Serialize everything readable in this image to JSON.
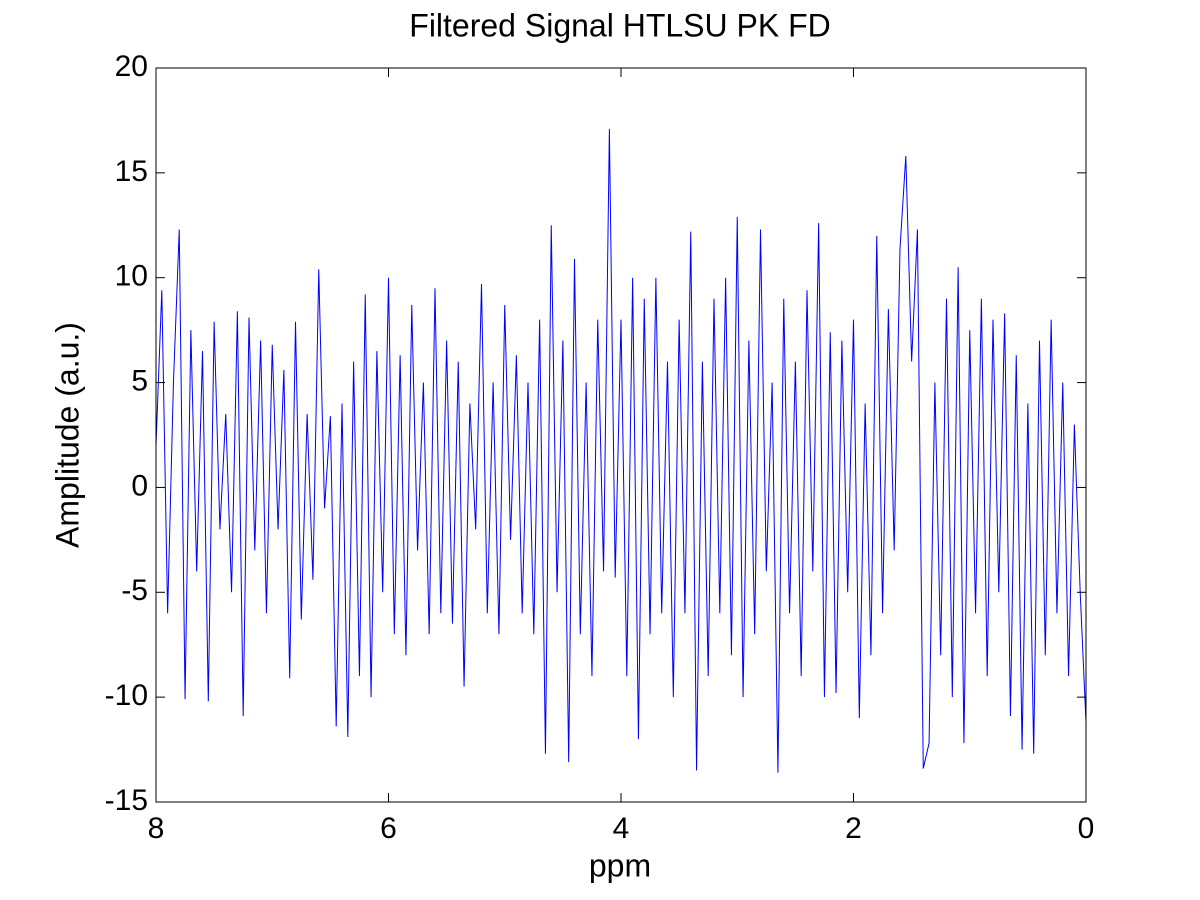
{
  "chart_data": {
    "type": "line",
    "title": "Filtered Signal HTLSU PK FD",
    "xlabel": "ppm",
    "ylabel": "Amplitude (a.u.)",
    "xlim": [
      8,
      0
    ],
    "xticks": [
      8,
      6,
      4,
      2,
      0
    ],
    "ylim": [
      -15,
      20
    ],
    "yticks": [
      -15,
      -10,
      -5,
      0,
      5,
      10,
      15,
      20
    ],
    "grid": false,
    "box": true,
    "x": [
      8,
      7.95,
      7.9,
      7.85,
      7.8,
      7.75,
      7.7,
      7.65,
      7.6,
      7.55,
      7.5,
      7.45,
      7.4,
      7.35,
      7.3,
      7.25,
      7.2,
      7.15,
      7.1,
      7.05,
      7.0,
      6.95,
      6.9,
      6.85,
      6.8,
      6.75,
      6.7,
      6.65,
      6.6,
      6.55,
      6.5,
      6.45,
      6.4,
      6.35,
      6.3,
      6.25,
      6.2,
      6.15,
      6.1,
      6.05,
      6.0,
      5.95,
      5.9,
      5.85,
      5.8,
      5.75,
      5.7,
      5.65,
      5.6,
      5.55,
      5.5,
      5.45,
      5.4,
      5.35,
      5.3,
      5.25,
      5.2,
      5.15,
      5.1,
      5.05,
      5.0,
      4.95,
      4.9,
      4.85,
      4.8,
      4.75,
      4.7,
      4.65,
      4.6,
      4.55,
      4.5,
      4.45,
      4.4,
      4.35,
      4.3,
      4.25,
      4.2,
      4.15,
      4.1,
      4.05,
      4.0,
      3.95,
      3.9,
      3.85,
      3.8,
      3.75,
      3.7,
      3.65,
      3.6,
      3.55,
      3.5,
      3.45,
      3.4,
      3.35,
      3.3,
      3.25,
      3.2,
      3.15,
      3.1,
      3.05,
      3.0,
      2.95,
      2.9,
      2.85,
      2.8,
      2.75,
      2.7,
      2.65,
      2.6,
      2.55,
      2.5,
      2.45,
      2.4,
      2.35,
      2.3,
      2.25,
      2.2,
      2.15,
      2.1,
      2.05,
      2.0,
      1.95,
      1.9,
      1.85,
      1.8,
      1.75,
      1.7,
      1.65,
      1.6,
      1.55,
      1.5,
      1.45,
      1.4,
      1.35,
      1.3,
      1.25,
      1.2,
      1.15,
      1.1,
      1.05,
      1.0,
      0.95,
      0.9,
      0.85,
      0.8,
      0.75,
      0.7,
      0.65,
      0.6,
      0.55,
      0.5,
      0.45,
      0.4,
      0.35,
      0.3,
      0.25,
      0.2,
      0.15,
      0.1,
      0.05,
      0
    ],
    "series": [
      {
        "color": "#0000ff",
        "values": [
          2,
          9.4,
          -6,
          5,
          12.3,
          -10.1,
          7.5,
          -4,
          6.5,
          -10.2,
          7.9,
          -2,
          3.5,
          -5,
          8.4,
          -10.9,
          8.1,
          -3,
          7,
          -6,
          6.8,
          -2,
          5.6,
          -9.1,
          7.9,
          -6.3,
          3.5,
          -4.4,
          10.4,
          -1,
          3.4,
          -11.4,
          4,
          -11.9,
          6,
          -9,
          9.2,
          -10,
          6.5,
          -5,
          10,
          -7,
          6.3,
          -8,
          8.7,
          -3,
          5,
          -7,
          9.5,
          -6,
          7,
          -6.5,
          6,
          -9.5,
          4,
          -2,
          9.7,
          -6,
          5,
          -7,
          8.7,
          -2.5,
          6.3,
          -6,
          5,
          -7,
          8,
          -12.7,
          12.5,
          -5,
          7,
          -13.1,
          10.9,
          -7,
          5,
          -9,
          8,
          -4,
          17.1,
          -4.3,
          8,
          -9,
          10,
          -12,
          9,
          -7,
          10,
          -6,
          6,
          -10,
          8,
          -6,
          12.2,
          -13.5,
          6,
          -9,
          9,
          -6,
          10,
          -8,
          12.9,
          -10,
          7,
          -7,
          12.3,
          -4,
          5,
          -13.6,
          9,
          -6,
          6,
          -9,
          9.4,
          -4,
          12.6,
          -10,
          7.4,
          -9.8,
          7,
          -5,
          8,
          -11,
          4,
          -8,
          12,
          -6,
          8.5,
          -3,
          11.4,
          15.8,
          6,
          12.3,
          -13.4,
          -12.2,
          5,
          -8,
          9,
          -10,
          10.5,
          -12.2,
          7.5,
          -6,
          9,
          -9,
          8,
          -5,
          8.3,
          -10.9,
          6.3,
          -12.5,
          4,
          -12.7,
          7,
          -8,
          8,
          -6,
          5,
          -9,
          3,
          -5,
          -11.2
        ]
      }
    ]
  }
}
